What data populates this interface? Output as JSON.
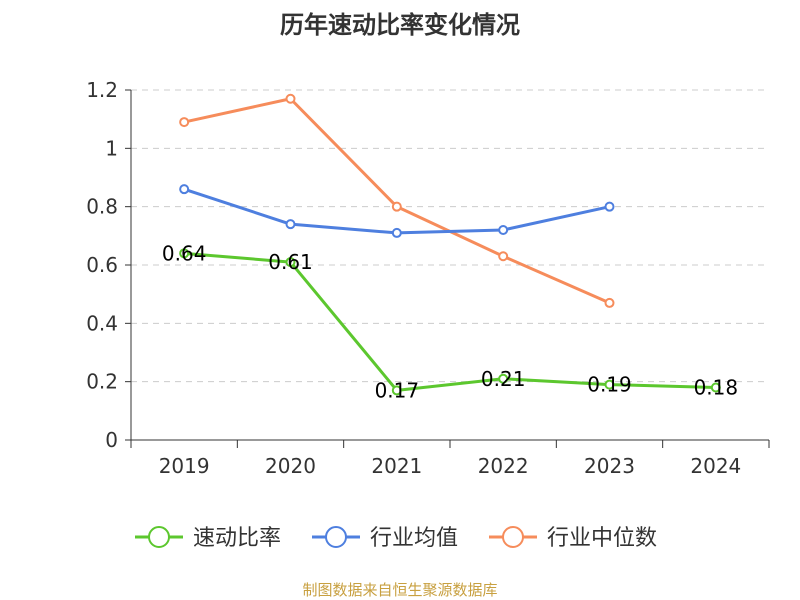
{
  "chart_data": {
    "type": "line",
    "title": "历年速动比率变化情况",
    "categories": [
      "2019",
      "2020",
      "2021",
      "2022",
      "2023",
      "2024"
    ],
    "ylim": [
      0,
      1.2
    ],
    "yticks": [
      "0",
      "0.2",
      "0.4",
      "0.6",
      "0.8",
      "1",
      "1.2"
    ],
    "ytick_values": [
      0,
      0.2,
      0.4,
      0.6,
      0.8,
      1.0,
      1.2
    ],
    "grid": true,
    "legend_position": "bottom",
    "series": [
      {
        "name": "速动比率",
        "color": "#5cc72e",
        "values": [
          0.64,
          0.61,
          0.17,
          0.21,
          0.19,
          0.18
        ],
        "labels": [
          "0.64",
          "0.61",
          "0.17",
          "0.21",
          "0.19",
          "0.18"
        ]
      },
      {
        "name": "行业均值",
        "color": "#4e7fdf",
        "values": [
          0.86,
          0.74,
          0.71,
          0.72,
          0.8,
          null
        ]
      },
      {
        "name": "行业中位数",
        "color": "#f68c5b",
        "values": [
          1.09,
          1.17,
          0.8,
          0.63,
          0.47,
          null
        ]
      }
    ]
  },
  "source": "制图数据来自恒生聚源数据库"
}
